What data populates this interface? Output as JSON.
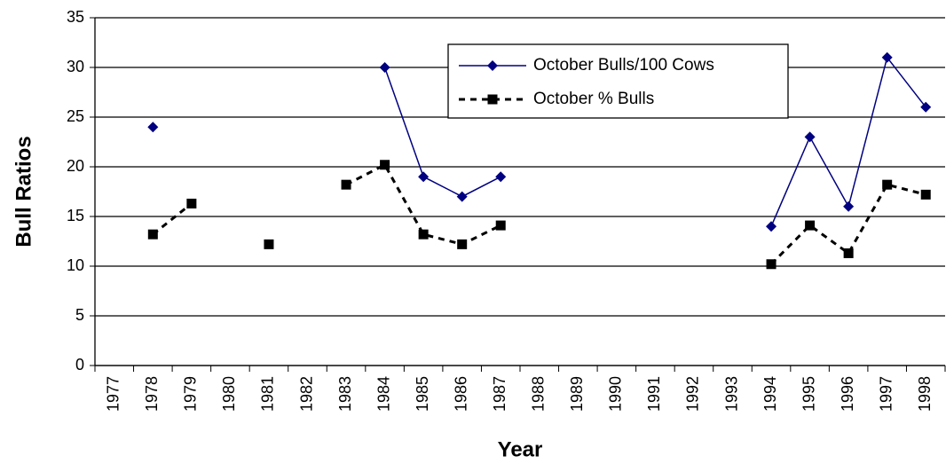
{
  "chart_data": {
    "type": "line",
    "xlabel": "Year",
    "ylabel": "Bull Ratios",
    "categories": [
      "1977",
      "1978",
      "1979",
      "1980",
      "1981",
      "1982",
      "1983",
      "1984",
      "1985",
      "1986",
      "1987",
      "1988",
      "1989",
      "1990",
      "1991",
      "1992",
      "1993",
      "1994",
      "1995",
      "1996",
      "1997",
      "1998"
    ],
    "series": [
      {
        "name": "October Bulls/100 Cows",
        "color": "#000080",
        "line": "solid",
        "marker": "diamond",
        "values": [
          null,
          24,
          null,
          null,
          null,
          null,
          null,
          30,
          19,
          17,
          19,
          null,
          null,
          null,
          null,
          null,
          null,
          14,
          23,
          16,
          31,
          26
        ]
      },
      {
        "name": "October % Bulls",
        "color": "#000000",
        "line": "dashed",
        "marker": "square",
        "values": [
          null,
          13.2,
          16.3,
          null,
          12.2,
          null,
          18.2,
          20.2,
          13.2,
          12.2,
          14.1,
          null,
          null,
          null,
          null,
          null,
          null,
          10.2,
          14.1,
          11.3,
          18.2,
          17.2
        ]
      }
    ],
    "ylim": [
      0,
      35
    ],
    "yticks": [
      0,
      5,
      10,
      15,
      20,
      25,
      30,
      35
    ],
    "grid": true,
    "legend": "top"
  }
}
